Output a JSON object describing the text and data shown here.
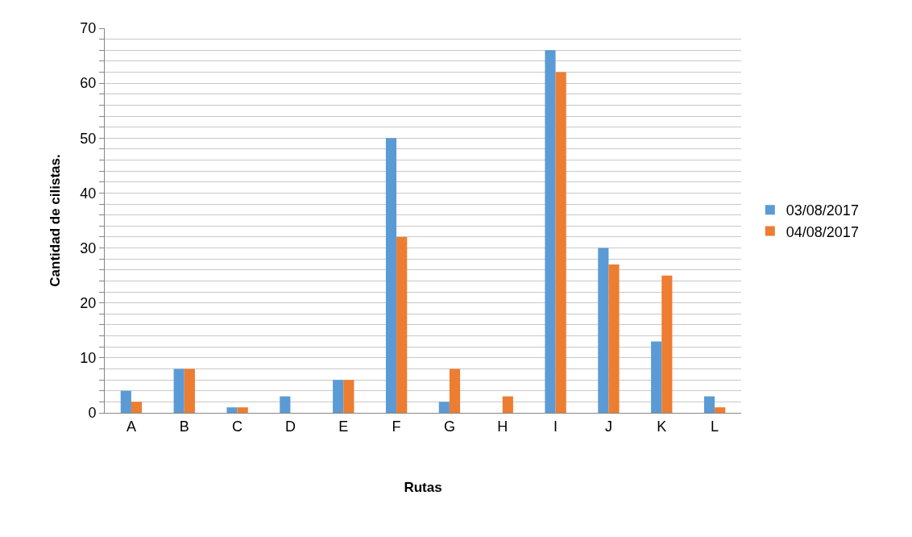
{
  "chart_data": {
    "type": "bar",
    "xlabel": "Rutas",
    "ylabel": "Cantidad de cilistas.",
    "categories": [
      "A",
      "B",
      "C",
      "D",
      "E",
      "F",
      "G",
      "H",
      "I",
      "J",
      "K",
      "L"
    ],
    "series": [
      {
        "name": "03/08/2017",
        "color": "#5b9bd5",
        "values": [
          4,
          8,
          1,
          3,
          6,
          50,
          2,
          0,
          66,
          30,
          13,
          3
        ]
      },
      {
        "name": "04/08/2017",
        "color": "#ed7d31",
        "values": [
          2,
          8,
          1,
          0,
          6,
          32,
          8,
          3,
          62,
          27,
          25,
          1
        ]
      }
    ],
    "ylim": [
      0,
      70
    ],
    "yticks": [
      0,
      {
        "value": 2,
        "label": null
      },
      {
        "value": 4,
        "label": null
      },
      {
        "value": 6,
        "label": null
      },
      {
        "value": 8,
        "label": null
      },
      10,
      {
        "value": 12,
        "label": null
      },
      {
        "value": 14,
        "label": null
      },
      {
        "value": 16,
        "label": null
      },
      {
        "value": 18,
        "label": null
      },
      20,
      {
        "value": 22,
        "label": null
      },
      {
        "value": 24,
        "label": null
      },
      {
        "value": 26,
        "label": null
      },
      {
        "value": 28,
        "label": null
      },
      30,
      {
        "value": 32,
        "label": null
      },
      {
        "value": 34,
        "label": null
      },
      {
        "value": 36,
        "label": null
      },
      {
        "value": 38,
        "label": null
      },
      40,
      {
        "value": 42,
        "label": null
      },
      {
        "value": 44,
        "label": null
      },
      {
        "value": 46,
        "label": null
      },
      {
        "value": 48,
        "label": null
      },
      50,
      {
        "value": 52,
        "label": null
      },
      {
        "value": 54,
        "label": null
      },
      {
        "value": 56,
        "label": null
      },
      {
        "value": 58,
        "label": null
      },
      60,
      {
        "value": 62,
        "label": null
      },
      {
        "value": 64,
        "label": null
      },
      {
        "value": 66,
        "label": null
      },
      {
        "value": 68,
        "label": null
      },
      70
    ],
    "grid": "y",
    "legend": "right"
  }
}
